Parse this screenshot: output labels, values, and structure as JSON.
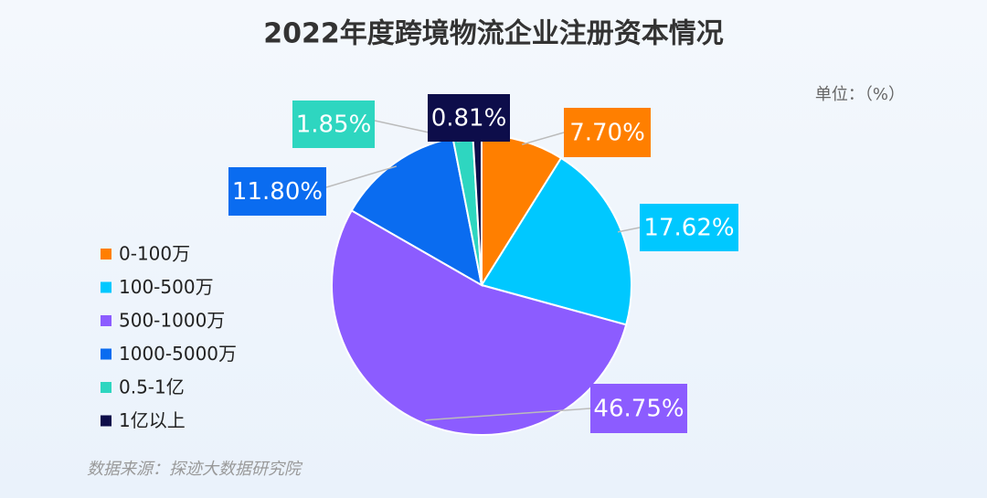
{
  "chart_data": {
    "type": "pie",
    "title": "2022年度跨境物流企业注册资本情况",
    "unit": "单位：（%）",
    "source": "数据来源：探迹大数据研究院",
    "categories": [
      "0-100万",
      "100-500万",
      "500-1000万",
      "1000-5000万",
      "0.5-1亿",
      "1亿以上"
    ],
    "values": [
      7.7,
      17.62,
      46.75,
      11.8,
      1.85,
      0.81
    ],
    "value_labels": [
      "7.70%",
      "17.62%",
      "46.75%",
      "11.80%",
      "1.85%",
      "0.81%"
    ],
    "colors": [
      "#ff7f00",
      "#00c8ff",
      "#8c5cff",
      "#0a6cf0",
      "#2ed6c0",
      "#0d0d4a"
    ],
    "legend": "left"
  }
}
